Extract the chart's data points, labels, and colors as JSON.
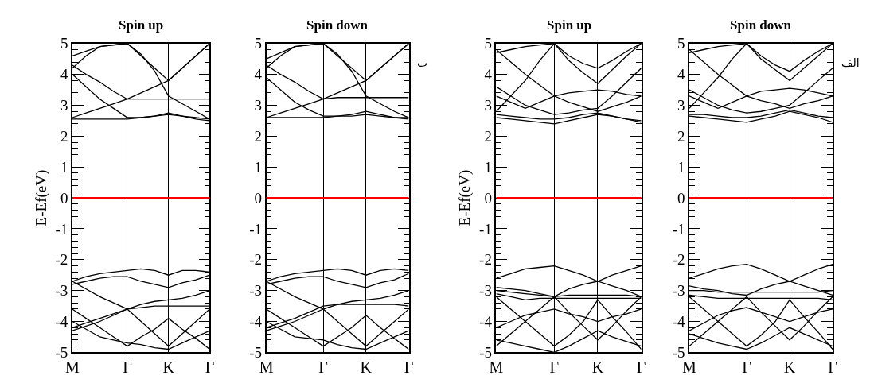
{
  "chart_data": [
    {
      "type": "line",
      "title": "Spin up",
      "ylabel": "E-Ef(eV)",
      "marker": "none",
      "line_style": "solid",
      "grid": "x",
      "categories": [
        "M",
        null,
        null,
        null,
        "Γ",
        null,
        null,
        "K",
        null,
        null,
        "Γ"
      ],
      "ylim": [
        -5,
        5
      ],
      "yticks": [
        -5,
        {
          "value": -4.8,
          "label": null
        },
        {
          "value": -4.6,
          "label": null
        },
        {
          "value": -4.4,
          "label": null
        },
        {
          "value": -4.2,
          "label": null
        },
        -4,
        {
          "value": -3.8,
          "label": null
        },
        {
          "value": -3.6,
          "label": null
        },
        {
          "value": -3.4,
          "label": null
        },
        {
          "value": -3.2,
          "label": null
        },
        -3,
        {
          "value": -2.8,
          "label": null
        },
        {
          "value": -2.6,
          "label": null
        },
        {
          "value": -2.4,
          "label": null
        },
        {
          "value": -2.2,
          "label": null
        },
        -2,
        {
          "value": -1.8,
          "label": null
        },
        {
          "value": -1.6,
          "label": null
        },
        {
          "value": -1.4,
          "label": null
        },
        {
          "value": -1.2,
          "label": null
        },
        -1,
        {
          "value": -0.8,
          "label": null
        },
        {
          "value": -0.6,
          "label": null
        },
        {
          "value": -0.4,
          "label": null
        },
        {
          "value": -0.2,
          "label": null
        },
        0,
        {
          "value": 0.2,
          "label": null
        },
        {
          "value": 0.4,
          "label": null
        },
        {
          "value": 0.6,
          "label": null
        },
        {
          "value": 0.8,
          "label": null
        },
        1,
        {
          "value": 1.2,
          "label": null
        },
        {
          "value": 1.4,
          "label": null
        },
        {
          "value": 1.6,
          "label": null
        },
        {
          "value": 1.8,
          "label": null
        },
        2,
        {
          "value": 2.2,
          "label": null
        },
        {
          "value": 2.4,
          "label": null
        },
        {
          "value": 2.6,
          "label": null
        },
        {
          "value": 2.8,
          "label": null
        },
        3,
        {
          "value": 3.2,
          "label": null
        },
        {
          "value": 3.4,
          "label": null
        },
        {
          "value": 3.6,
          "label": null
        },
        {
          "value": 3.8,
          "label": null
        },
        4,
        {
          "value": 4.2,
          "label": null
        },
        {
          "value": 4.4,
          "label": null
        },
        {
          "value": 4.6,
          "label": null
        },
        {
          "value": 4.8,
          "label": null
        },
        5
      ],
      "ref_lines": [
        {
          "axis": "y",
          "value": 0,
          "color": "#ff0000"
        }
      ],
      "series": [
        {
          "color": "#000000",
          "values": [
            2.55,
            2.55,
            2.55,
            2.55,
            2.55,
            2.6,
            2.65,
            2.75,
            2.65,
            2.55,
            2.5
          ]
        },
        {
          "color": "#000000",
          "values": [
            4.0,
            3.6,
            3.2,
            2.9,
            2.6,
            2.6,
            2.65,
            2.7,
            2.65,
            2.6,
            2.55
          ]
        },
        {
          "color": "#000000",
          "values": [
            4.3,
            4.0,
            3.75,
            3.45,
            3.2,
            3.2,
            3.2,
            3.2,
            3.2,
            3.2,
            3.2
          ]
        },
        {
          "color": "#000000",
          "values": [
            2.6,
            2.75,
            2.9,
            3.05,
            3.2,
            3.4,
            3.6,
            3.8,
            4.2,
            4.6,
            5.0
          ]
        },
        {
          "color": "#000000",
          "values": [
            4.2,
            4.6,
            4.9,
            4.95,
            5.0,
            4.65,
            4.1,
            3.3,
            3.05,
            2.8,
            2.55
          ]
        },
        {
          "color": "#000000",
          "values": [
            4.6,
            4.75,
            4.9,
            4.95,
            5.0,
            4.6,
            4.2,
            3.8,
            4.2,
            4.6,
            5.0
          ]
        },
        {
          "color": "#000000",
          "values": [
            -2.7,
            -2.55,
            -2.45,
            -2.4,
            -2.35,
            -2.3,
            -2.35,
            -2.5,
            -2.35,
            -2.35,
            -2.4
          ]
        },
        {
          "color": "#000000",
          "values": [
            -2.8,
            -2.7,
            -2.6,
            -2.55,
            -2.55,
            -2.7,
            -2.8,
            -2.9,
            -2.75,
            -2.65,
            -2.5
          ]
        },
        {
          "color": "#000000",
          "values": [
            -2.7,
            -2.95,
            -3.2,
            -3.4,
            -3.6,
            -3.45,
            -3.35,
            -3.3,
            -3.25,
            -3.15,
            -3.0
          ]
        },
        {
          "color": "#000000",
          "values": [
            -4.2,
            -4.05,
            -3.9,
            -3.75,
            -3.6,
            -3.55,
            -3.5,
            -3.5,
            -3.5,
            -3.5,
            -3.5
          ]
        },
        {
          "color": "#000000",
          "values": [
            -4.0,
            -4.25,
            -4.5,
            -4.6,
            -4.7,
            -4.75,
            -4.85,
            -4.9,
            -4.7,
            -4.5,
            -4.3
          ]
        },
        {
          "color": "#000000",
          "values": [
            -4.3,
            -4.15,
            -4.0,
            -3.8,
            -3.6,
            -4.0,
            -4.4,
            -4.8,
            -4.4,
            -4.0,
            -3.6
          ]
        },
        {
          "color": "#000000",
          "values": [
            -3.6,
            -3.9,
            -4.2,
            -4.5,
            -4.8,
            -4.5,
            -4.25,
            -3.9,
            -4.25,
            -4.55,
            -4.9
          ]
        }
      ]
    },
    {
      "type": "line",
      "title": "Spin down",
      "annotations": [
        "ب"
      ],
      "marker": "none",
      "line_style": "solid",
      "grid": "x",
      "categories": [
        "M",
        null,
        null,
        null,
        "Γ",
        null,
        null,
        "K",
        null,
        null,
        "Γ"
      ],
      "ylim": [
        -5,
        5
      ],
      "yticks": [
        -5,
        {
          "value": -4.8,
          "label": null
        },
        {
          "value": -4.6,
          "label": null
        },
        {
          "value": -4.4,
          "label": null
        },
        {
          "value": -4.2,
          "label": null
        },
        -4,
        {
          "value": -3.8,
          "label": null
        },
        {
          "value": -3.6,
          "label": null
        },
        {
          "value": -3.4,
          "label": null
        },
        {
          "value": -3.2,
          "label": null
        },
        -3,
        {
          "value": -2.8,
          "label": null
        },
        {
          "value": -2.6,
          "label": null
        },
        {
          "value": -2.4,
          "label": null
        },
        {
          "value": -2.2,
          "label": null
        },
        -2,
        {
          "value": -1.8,
          "label": null
        },
        {
          "value": -1.6,
          "label": null
        },
        {
          "value": -1.4,
          "label": null
        },
        {
          "value": -1.2,
          "label": null
        },
        -1,
        {
          "value": -0.8,
          "label": null
        },
        {
          "value": -0.6,
          "label": null
        },
        {
          "value": -0.4,
          "label": null
        },
        {
          "value": -0.2,
          "label": null
        },
        0,
        {
          "value": 0.2,
          "label": null
        },
        {
          "value": 0.4,
          "label": null
        },
        {
          "value": 0.6,
          "label": null
        },
        {
          "value": 0.8,
          "label": null
        },
        1,
        {
          "value": 1.2,
          "label": null
        },
        {
          "value": 1.4,
          "label": null
        },
        {
          "value": 1.6,
          "label": null
        },
        {
          "value": 1.8,
          "label": null
        },
        2,
        {
          "value": 2.2,
          "label": null
        },
        {
          "value": 2.4,
          "label": null
        },
        {
          "value": 2.6,
          "label": null
        },
        {
          "value": 2.8,
          "label": null
        },
        3,
        {
          "value": 3.2,
          "label": null
        },
        {
          "value": 3.4,
          "label": null
        },
        {
          "value": 3.6,
          "label": null
        },
        {
          "value": 3.8,
          "label": null
        },
        4,
        {
          "value": 4.2,
          "label": null
        },
        {
          "value": 4.4,
          "label": null
        },
        {
          "value": 4.6,
          "label": null
        },
        {
          "value": 4.8,
          "label": null
        },
        5
      ],
      "ref_lines": [
        {
          "axis": "y",
          "value": 0,
          "color": "#ff0000"
        }
      ],
      "series": [
        {
          "color": "#000000",
          "values": [
            2.6,
            2.6,
            2.6,
            2.6,
            2.6,
            2.65,
            2.7,
            2.8,
            2.7,
            2.6,
            2.55
          ]
        },
        {
          "color": "#000000",
          "values": [
            3.9,
            3.5,
            3.1,
            2.85,
            2.65,
            2.65,
            2.65,
            2.7,
            2.65,
            2.6,
            2.6
          ]
        },
        {
          "color": "#000000",
          "values": [
            4.3,
            4.0,
            3.75,
            3.45,
            3.2,
            3.25,
            3.25,
            3.25,
            3.25,
            3.25,
            3.25
          ]
        },
        {
          "color": "#000000",
          "values": [
            2.6,
            2.75,
            2.9,
            3.05,
            3.2,
            3.4,
            3.6,
            3.8,
            4.2,
            4.6,
            5.0
          ]
        },
        {
          "color": "#000000",
          "values": [
            4.2,
            4.6,
            4.9,
            4.95,
            5.0,
            4.65,
            4.1,
            3.3,
            3.05,
            2.8,
            2.6
          ]
        },
        {
          "color": "#000000",
          "values": [
            4.5,
            4.7,
            4.9,
            4.95,
            5.0,
            4.6,
            4.2,
            3.8,
            4.2,
            4.6,
            5.0
          ]
        },
        {
          "color": "#000000",
          "values": [
            -2.7,
            -2.55,
            -2.45,
            -2.4,
            -2.35,
            -2.3,
            -2.35,
            -2.5,
            -2.35,
            -2.3,
            -2.35
          ]
        },
        {
          "color": "#000000",
          "values": [
            -2.8,
            -2.7,
            -2.6,
            -2.55,
            -2.55,
            -2.7,
            -2.8,
            -2.9,
            -2.75,
            -2.65,
            -2.45
          ]
        },
        {
          "color": "#000000",
          "values": [
            -2.7,
            -2.95,
            -3.2,
            -3.4,
            -3.6,
            -3.45,
            -3.35,
            -3.3,
            -3.25,
            -3.15,
            -3.0
          ]
        },
        {
          "color": "#000000",
          "values": [
            -4.2,
            -4.05,
            -3.9,
            -3.7,
            -3.5,
            -3.45,
            -3.45,
            -3.45,
            -3.45,
            -3.45,
            -3.5
          ]
        },
        {
          "color": "#000000",
          "values": [
            -4.0,
            -4.25,
            -4.5,
            -4.55,
            -4.6,
            -4.75,
            -4.85,
            -4.9,
            -4.7,
            -4.5,
            -4.3
          ]
        },
        {
          "color": "#000000",
          "values": [
            -4.3,
            -4.15,
            -4.0,
            -3.8,
            -3.6,
            -4.0,
            -4.4,
            -4.8,
            -4.4,
            -4.0,
            -3.6
          ]
        },
        {
          "color": "#000000",
          "values": [
            -3.6,
            -3.9,
            -4.2,
            -4.5,
            -4.8,
            -4.5,
            -4.2,
            -3.8,
            -4.2,
            -4.55,
            -4.9
          ]
        }
      ]
    },
    {
      "type": "line",
      "title": "Spin up",
      "ylabel": "E-Ef(eV)",
      "marker": "none",
      "line_style": "solid",
      "grid": "x",
      "categories": [
        "M",
        null,
        null,
        null,
        "Γ",
        null,
        null,
        "K",
        null,
        null,
        "Γ"
      ],
      "ylim": [
        -5,
        5
      ],
      "yticks": [
        -5,
        {
          "value": -4.8,
          "label": null
        },
        {
          "value": -4.6,
          "label": null
        },
        {
          "value": -4.4,
          "label": null
        },
        {
          "value": -4.2,
          "label": null
        },
        -4,
        {
          "value": -3.8,
          "label": null
        },
        {
          "value": -3.6,
          "label": null
        },
        {
          "value": -3.4,
          "label": null
        },
        {
          "value": -3.2,
          "label": null
        },
        -3,
        {
          "value": -2.8,
          "label": null
        },
        {
          "value": -2.6,
          "label": null
        },
        {
          "value": -2.4,
          "label": null
        },
        {
          "value": -2.2,
          "label": null
        },
        -2,
        {
          "value": -1.8,
          "label": null
        },
        {
          "value": -1.6,
          "label": null
        },
        {
          "value": -1.4,
          "label": null
        },
        {
          "value": -1.2,
          "label": null
        },
        -1,
        {
          "value": -0.8,
          "label": null
        },
        {
          "value": -0.6,
          "label": null
        },
        {
          "value": -0.4,
          "label": null
        },
        {
          "value": -0.2,
          "label": null
        },
        0,
        {
          "value": 0.2,
          "label": null
        },
        {
          "value": 0.4,
          "label": null
        },
        {
          "value": 0.6,
          "label": null
        },
        {
          "value": 0.8,
          "label": null
        },
        1,
        {
          "value": 1.2,
          "label": null
        },
        {
          "value": 1.4,
          "label": null
        },
        {
          "value": 1.6,
          "label": null
        },
        {
          "value": 1.8,
          "label": null
        },
        2,
        {
          "value": 2.2,
          "label": null
        },
        {
          "value": 2.4,
          "label": null
        },
        {
          "value": 2.6,
          "label": null
        },
        {
          "value": 2.8,
          "label": null
        },
        3,
        {
          "value": 3.2,
          "label": null
        },
        {
          "value": 3.4,
          "label": null
        },
        {
          "value": 3.6,
          "label": null
        },
        {
          "value": 3.8,
          "label": null
        },
        4,
        {
          "value": 4.2,
          "label": null
        },
        {
          "value": 4.4,
          "label": null
        },
        {
          "value": 4.6,
          "label": null
        },
        {
          "value": 4.8,
          "label": null
        },
        5
      ],
      "ref_lines": [
        {
          "axis": "y",
          "value": 0,
          "color": "#ff0000"
        }
      ],
      "series": [
        {
          "color": "#000000",
          "values": [
            2.6,
            2.55,
            2.5,
            2.45,
            2.4,
            2.5,
            2.6,
            2.7,
            2.65,
            2.55,
            2.5
          ]
        },
        {
          "color": "#000000",
          "values": [
            2.7,
            2.65,
            2.6,
            2.55,
            2.55,
            2.6,
            2.7,
            2.75,
            2.65,
            2.55,
            2.45
          ]
        },
        {
          "color": "#000000",
          "values": [
            3.3,
            3.1,
            2.9,
            3.1,
            3.3,
            3.4,
            3.45,
            3.5,
            3.45,
            3.35,
            3.3
          ]
        },
        {
          "color": "#000000",
          "values": [
            4.8,
            4.4,
            4.0,
            3.65,
            3.3,
            3.1,
            2.95,
            2.8,
            2.95,
            3.1,
            3.3
          ]
        },
        {
          "color": "#000000",
          "values": [
            2.8,
            3.3,
            3.8,
            4.45,
            5.0,
            4.6,
            4.35,
            4.2,
            4.45,
            4.75,
            5.0
          ]
        },
        {
          "color": "#000000",
          "values": [
            3.6,
            3.3,
            3.0,
            2.85,
            2.7,
            2.75,
            2.85,
            2.9,
            3.3,
            3.75,
            4.2
          ]
        },
        {
          "color": "#000000",
          "values": [
            4.7,
            4.8,
            4.9,
            4.95,
            5.0,
            4.45,
            4.05,
            3.7,
            4.15,
            4.6,
            5.0
          ]
        },
        {
          "color": "#000000",
          "values": [
            -2.6,
            -2.45,
            -2.3,
            -2.25,
            -2.2,
            -2.35,
            -2.5,
            -2.7,
            -2.5,
            -2.35,
            -2.2
          ]
        },
        {
          "color": "#000000",
          "values": [
            -2.9,
            -2.95,
            -3.0,
            -3.1,
            -3.2,
            -2.95,
            -2.8,
            -2.7,
            -2.85,
            -3.0,
            -3.2
          ]
        },
        {
          "color": "#000000",
          "values": [
            -3.0,
            -3.05,
            -3.1,
            -3.15,
            -3.2,
            -3.15,
            -3.15,
            -3.15,
            -3.15,
            -3.15,
            -3.2
          ]
        },
        {
          "color": "#000000",
          "values": [
            -3.1,
            -3.2,
            -3.3,
            -3.25,
            -3.25,
            -3.25,
            -3.25,
            -3.25,
            -3.25,
            -3.25,
            -3.25
          ]
        },
        {
          "color": "#000000",
          "values": [
            -4.2,
            -4.0,
            -3.8,
            -3.7,
            -3.6,
            -3.75,
            -3.85,
            -4.0,
            -3.85,
            -3.75,
            -3.6
          ]
        },
        {
          "color": "#000000",
          "values": [
            -3.2,
            -3.6,
            -4.0,
            -4.4,
            -4.8,
            -4.45,
            -4.0,
            -3.3,
            -3.85,
            -4.35,
            -4.9
          ]
        },
        {
          "color": "#000000",
          "values": [
            -4.8,
            -4.4,
            -4.0,
            -3.6,
            -3.2,
            -3.7,
            -4.15,
            -4.6,
            -4.15,
            -3.65,
            -3.2
          ]
        },
        {
          "color": "#000000",
          "values": [
            -4.6,
            -4.7,
            -4.8,
            -4.9,
            -5.0,
            -4.8,
            -4.55,
            -4.3,
            -4.5,
            -4.65,
            -4.8
          ]
        }
      ]
    },
    {
      "type": "line",
      "title": "Spin down",
      "annotations": [
        "الف"
      ],
      "marker": "none",
      "line_style": "solid",
      "grid": "x",
      "categories": [
        "M",
        null,
        null,
        null,
        "Γ",
        null,
        null,
        "K",
        null,
        null,
        "Γ"
      ],
      "ylim": [
        -5,
        5
      ],
      "yticks": [
        -5,
        {
          "value": -4.8,
          "label": null
        },
        {
          "value": -4.6,
          "label": null
        },
        {
          "value": -4.4,
          "label": null
        },
        {
          "value": -4.2,
          "label": null
        },
        -4,
        {
          "value": -3.8,
          "label": null
        },
        {
          "value": -3.6,
          "label": null
        },
        {
          "value": -3.4,
          "label": null
        },
        {
          "value": -3.2,
          "label": null
        },
        -3,
        {
          "value": -2.8,
          "label": null
        },
        {
          "value": -2.6,
          "label": null
        },
        {
          "value": -2.4,
          "label": null
        },
        {
          "value": -2.2,
          "label": null
        },
        -2,
        {
          "value": -1.8,
          "label": null
        },
        {
          "value": -1.6,
          "label": null
        },
        {
          "value": -1.4,
          "label": null
        },
        {
          "value": -1.2,
          "label": null
        },
        -1,
        {
          "value": -0.8,
          "label": null
        },
        {
          "value": -0.6,
          "label": null
        },
        {
          "value": -0.4,
          "label": null
        },
        {
          "value": -0.2,
          "label": null
        },
        0,
        {
          "value": 0.2,
          "label": null
        },
        {
          "value": 0.4,
          "label": null
        },
        {
          "value": 0.6,
          "label": null
        },
        {
          "value": 0.8,
          "label": null
        },
        1,
        {
          "value": 1.2,
          "label": null
        },
        {
          "value": 1.4,
          "label": null
        },
        {
          "value": 1.6,
          "label": null
        },
        {
          "value": 1.8,
          "label": null
        },
        2,
        {
          "value": 2.2,
          "label": null
        },
        {
          "value": 2.4,
          "label": null
        },
        {
          "value": 2.6,
          "label": null
        },
        {
          "value": 2.8,
          "label": null
        },
        3,
        {
          "value": 3.2,
          "label": null
        },
        {
          "value": 3.4,
          "label": null
        },
        {
          "value": 3.6,
          "label": null
        },
        {
          "value": 3.8,
          "label": null
        },
        4,
        {
          "value": 4.2,
          "label": null
        },
        {
          "value": 4.4,
          "label": null
        },
        {
          "value": 4.6,
          "label": null
        },
        {
          "value": 4.8,
          "label": null
        },
        5
      ],
      "ref_lines": [
        {
          "axis": "y",
          "value": 0,
          "color": "#ff0000"
        }
      ],
      "series": [
        {
          "color": "#000000",
          "values": [
            2.65,
            2.6,
            2.55,
            2.5,
            2.45,
            2.55,
            2.65,
            2.8,
            2.7,
            2.6,
            2.45
          ]
        },
        {
          "color": "#000000",
          "values": [
            2.7,
            2.7,
            2.65,
            2.6,
            2.6,
            2.65,
            2.75,
            2.85,
            2.75,
            2.65,
            2.6
          ]
        },
        {
          "color": "#000000",
          "values": [
            3.3,
            3.1,
            2.9,
            3.1,
            3.3,
            3.45,
            3.5,
            3.55,
            3.5,
            3.4,
            3.3
          ]
        },
        {
          "color": "#000000",
          "values": [
            4.8,
            4.4,
            4.0,
            3.65,
            3.3,
            3.15,
            3.05,
            2.9,
            3.05,
            3.15,
            3.3
          ]
        },
        {
          "color": "#000000",
          "values": [
            2.9,
            3.4,
            3.9,
            4.5,
            5.0,
            4.6,
            4.3,
            4.1,
            4.45,
            4.75,
            5.0
          ]
        },
        {
          "color": "#000000",
          "values": [
            3.5,
            3.25,
            3.0,
            2.85,
            2.75,
            2.8,
            2.9,
            3.0,
            3.4,
            3.8,
            4.2
          ]
        },
        {
          "color": "#000000",
          "values": [
            4.7,
            4.8,
            4.9,
            4.95,
            5.0,
            4.5,
            4.15,
            3.8,
            4.2,
            4.6,
            5.0
          ]
        },
        {
          "color": "#000000",
          "values": [
            -2.6,
            -2.45,
            -2.3,
            -2.2,
            -2.15,
            -2.3,
            -2.5,
            -2.7,
            -2.5,
            -2.3,
            -2.15
          ]
        },
        {
          "color": "#000000",
          "values": [
            -2.85,
            -2.95,
            -3.0,
            -3.1,
            -3.15,
            -2.95,
            -2.8,
            -2.7,
            -2.85,
            -3.0,
            -3.15
          ]
        },
        {
          "color": "#000000",
          "values": [
            -3.0,
            -3.0,
            -3.05,
            -3.05,
            -3.05,
            -3.05,
            -3.05,
            -3.05,
            -3.05,
            -3.05,
            -3.0
          ]
        },
        {
          "color": "#000000",
          "values": [
            -3.15,
            -3.2,
            -3.25,
            -3.25,
            -3.25,
            -3.25,
            -3.25,
            -3.25,
            -3.25,
            -3.25,
            -3.3
          ]
        },
        {
          "color": "#000000",
          "values": [
            -4.3,
            -4.05,
            -3.8,
            -3.65,
            -3.55,
            -3.7,
            -3.85,
            -4.0,
            -3.85,
            -3.7,
            -3.6
          ]
        },
        {
          "color": "#000000",
          "values": [
            -3.2,
            -3.6,
            -4.0,
            -4.4,
            -4.8,
            -4.45,
            -4.0,
            -3.3,
            -3.85,
            -4.35,
            -4.9
          ]
        },
        {
          "color": "#000000",
          "values": [
            -4.8,
            -4.4,
            -4.0,
            -3.6,
            -3.2,
            -3.7,
            -4.15,
            -4.6,
            -4.15,
            -3.65,
            -3.2
          ]
        },
        {
          "color": "#000000",
          "values": [
            -4.4,
            -4.55,
            -4.7,
            -4.8,
            -4.9,
            -4.7,
            -4.45,
            -4.2,
            -4.4,
            -4.6,
            -4.8
          ]
        }
      ]
    }
  ]
}
